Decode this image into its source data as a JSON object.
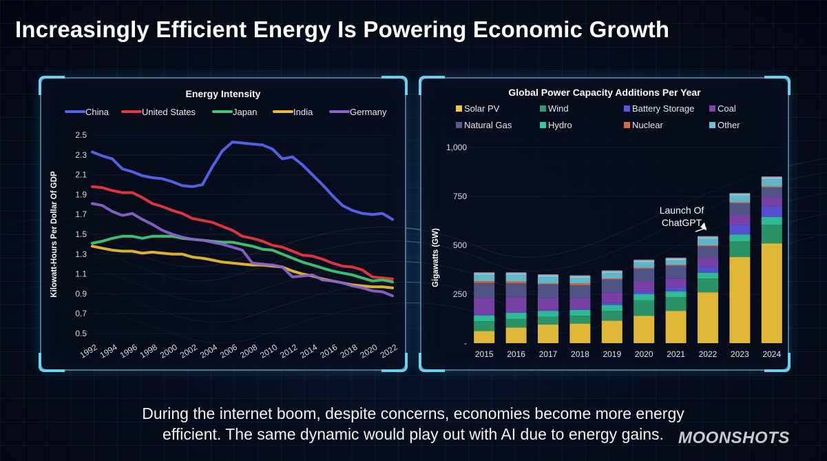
{
  "title": "Increasingly Efficient Energy Is Powering Economic Growth",
  "caption_line1": "During the internet boom, despite concerns, economies become more energy",
  "caption_line2": "efficient. The same dynamic would play out with AI due to energy gains.",
  "watermark": "MOONSHOTS",
  "colors": {
    "china": "#5566ee",
    "us": "#e8383d",
    "japan": "#3fc775",
    "india": "#e8b931",
    "germany": "#8a62c8",
    "solar": "#f2c73c",
    "wind": "#2f9e6e",
    "battery": "#5b57e0",
    "coal": "#8244b0",
    "gas": "#565a8e",
    "hydro": "#33c9a0",
    "nuclear": "#e0673a",
    "other": "#6ac4d8",
    "accent": "#6fd0ee"
  },
  "chart_data": [
    {
      "type": "line",
      "title": "Energy Intensity",
      "ylabel": "Kilowatt-Hours Per Dollar Of GDP",
      "xlabel": "",
      "ylim": [
        0.5,
        2.5
      ],
      "yticks": [
        "2.5",
        "2.3",
        "2.1",
        "1.9",
        "1.7",
        "1.5",
        "1.3",
        "1.1",
        "0.9",
        "0.7",
        "0.5"
      ],
      "ytick_values": [
        2.5,
        2.3,
        2.1,
        1.9,
        1.7,
        1.5,
        1.3,
        1.1,
        0.9,
        0.7,
        0.5
      ],
      "xticks": [
        "1992",
        "1994",
        "1996",
        "1998",
        "2000",
        "2002",
        "2004",
        "2006",
        "2008",
        "2010",
        "2012",
        "2014",
        "2016",
        "2018",
        "2020",
        "2022"
      ],
      "x": [
        1992,
        1993,
        1994,
        1995,
        1996,
        1997,
        1998,
        1999,
        2000,
        2001,
        2002,
        2003,
        2004,
        2005,
        2006,
        2007,
        2008,
        2009,
        2010,
        2011,
        2012,
        2013,
        2014,
        2015,
        2016,
        2017,
        2018,
        2019,
        2020,
        2021,
        2022
      ],
      "legend_position": "top",
      "series": [
        {
          "name": "China",
          "color_key": "china",
          "values": [
            2.33,
            2.29,
            2.26,
            2.16,
            2.13,
            2.09,
            2.07,
            2.06,
            2.03,
            1.99,
            1.98,
            2.0,
            2.18,
            2.34,
            2.43,
            2.42,
            2.41,
            2.4,
            2.36,
            2.26,
            2.28,
            2.2,
            2.1,
            2.0,
            1.89,
            1.79,
            1.74,
            1.71,
            1.7,
            1.71,
            1.65
          ]
        },
        {
          "name": "United States",
          "color_key": "us",
          "values": [
            1.98,
            1.97,
            1.94,
            1.92,
            1.92,
            1.87,
            1.81,
            1.78,
            1.74,
            1.71,
            1.66,
            1.64,
            1.62,
            1.58,
            1.54,
            1.48,
            1.46,
            1.43,
            1.39,
            1.37,
            1.33,
            1.29,
            1.28,
            1.25,
            1.21,
            1.18,
            1.17,
            1.14,
            1.07,
            1.06,
            1.05
          ]
        },
        {
          "name": "Japan",
          "color_key": "japan",
          "values": [
            1.41,
            1.43,
            1.46,
            1.48,
            1.48,
            1.46,
            1.48,
            1.48,
            1.48,
            1.46,
            1.45,
            1.44,
            1.43,
            1.42,
            1.42,
            1.4,
            1.38,
            1.35,
            1.34,
            1.3,
            1.26,
            1.22,
            1.19,
            1.16,
            1.13,
            1.11,
            1.09,
            1.06,
            1.03,
            1.04,
            1.02
          ]
        },
        {
          "name": "India",
          "color_key": "india",
          "values": [
            1.38,
            1.36,
            1.34,
            1.33,
            1.33,
            1.31,
            1.32,
            1.31,
            1.3,
            1.3,
            1.27,
            1.26,
            1.24,
            1.22,
            1.21,
            1.2,
            1.19,
            1.19,
            1.18,
            1.17,
            1.13,
            1.1,
            1.08,
            1.05,
            1.03,
            1.01,
            0.99,
            0.98,
            0.97,
            0.97,
            0.96
          ]
        },
        {
          "name": "Germany",
          "color_key": "germany",
          "values": [
            1.81,
            1.79,
            1.73,
            1.69,
            1.71,
            1.65,
            1.6,
            1.54,
            1.5,
            1.47,
            1.45,
            1.44,
            1.42,
            1.4,
            1.37,
            1.34,
            1.21,
            1.2,
            1.19,
            1.17,
            1.07,
            1.08,
            1.09,
            1.04,
            1.03,
            1.01,
            0.98,
            0.96,
            0.93,
            0.92,
            0.88
          ]
        }
      ]
    },
    {
      "type": "bar",
      "stacked": true,
      "title": "Global Power Capacity Additions Per Year",
      "ylabel": "Gigawatts (GW)",
      "xlabel": "",
      "ylim": [
        0,
        1000
      ],
      "yticks": [
        "1,000",
        "750",
        "500",
        "250",
        "-"
      ],
      "ytick_values": [
        1000,
        750,
        500,
        250,
        0
      ],
      "categories": [
        "2015",
        "2016",
        "2017",
        "2018",
        "2019",
        "2020",
        "2021",
        "2022",
        "2023",
        "2024"
      ],
      "legend_position": "top",
      "annotation": {
        "text_line1": "Launch Of",
        "text_line2": "ChatGPT",
        "category": "2022"
      },
      "series": [
        {
          "name": "Solar PV",
          "color_key": "solar",
          "values": [
            62,
            80,
            95,
            100,
            115,
            140,
            165,
            260,
            440,
            510
          ]
        },
        {
          "name": "Wind",
          "color_key": "wind",
          "values": [
            50,
            45,
            40,
            40,
            50,
            80,
            70,
            70,
            80,
            95
          ]
        },
        {
          "name": "Hydro",
          "color_key": "hydro",
          "values": [
            30,
            30,
            30,
            30,
            30,
            30,
            30,
            30,
            35,
            40
          ]
        },
        {
          "name": "Battery Storage",
          "color_key": "battery",
          "values": [
            5,
            5,
            5,
            5,
            10,
            15,
            20,
            30,
            50,
            55
          ]
        },
        {
          "name": "Coal",
          "color_key": "coal",
          "values": [
            85,
            75,
            60,
            55,
            55,
            50,
            45,
            45,
            50,
            45
          ]
        },
        {
          "name": "Natural Gas",
          "color_key": "gas",
          "values": [
            75,
            70,
            70,
            65,
            65,
            65,
            65,
            60,
            60,
            50
          ]
        },
        {
          "name": "Nuclear",
          "color_key": "nuclear",
          "values": [
            10,
            10,
            5,
            10,
            5,
            5,
            5,
            5,
            5,
            5
          ]
        },
        {
          "name": "Other",
          "color_key": "other",
          "values": [
            38,
            40,
            40,
            35,
            35,
            35,
            30,
            40,
            40,
            45
          ]
        }
      ],
      "legend_order": [
        "Solar PV",
        "Wind",
        "Battery Storage",
        "Coal",
        "Natural Gas",
        "Hydro",
        "Nuclear",
        "Other"
      ]
    }
  ]
}
